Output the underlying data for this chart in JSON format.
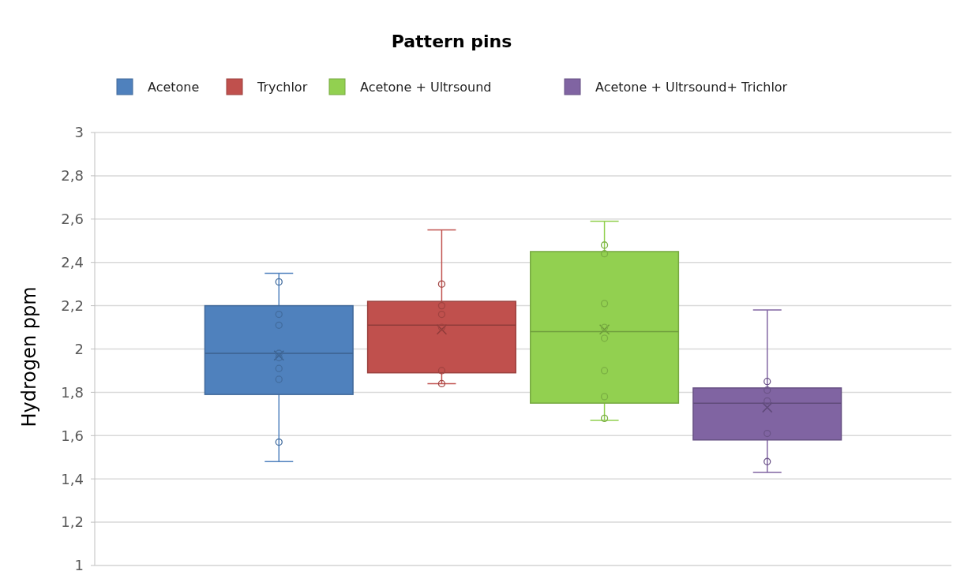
{
  "chart_data": {
    "type": "box",
    "title": "Pattern pins",
    "ylabel": "Hydrogen ppm",
    "categories": [
      null
    ],
    "ylim": [
      1,
      3
    ],
    "yticks": [
      1,
      {
        "value": 1.2,
        "label": "1,2"
      },
      {
        "value": 1.4,
        "label": "1,4"
      },
      {
        "value": 1.6,
        "label": "1,6"
      },
      {
        "value": 1.8,
        "label": "1,8"
      },
      2,
      {
        "value": 2.2,
        "label": "2,2"
      },
      {
        "value": 2.4,
        "label": "2,4"
      },
      {
        "value": 2.6,
        "label": "2,6"
      },
      {
        "value": 2.8,
        "label": "2,8"
      },
      3
    ],
    "grid": "y",
    "legend": "top",
    "series": [
      {
        "name": "Acetone",
        "color": "#4f81bd",
        "boxes": [
          {
            "low": 1.48,
            "q1": 1.79,
            "median": 1.98,
            "q3": 2.2,
            "high": 2.35,
            "mean": 1.97,
            "outliers": [
              2.31,
              2.16,
              2.11,
              1.98,
              1.96,
              1.91,
              1.86,
              1.57
            ]
          }
        ]
      },
      {
        "name": "Trychlor",
        "color": "#c0504d",
        "boxes": [
          {
            "low": 1.84,
            "q1": 1.89,
            "median": 2.11,
            "q3": 2.22,
            "high": 2.55,
            "mean": 2.09,
            "outliers": [
              2.3,
              2.2,
              2.16,
              2.1,
              1.9,
              1.84
            ]
          }
        ]
      },
      {
        "name": "Acetone + Ultrsound",
        "color": "#92d050",
        "boxes": [
          {
            "low": 1.67,
            "q1": 1.75,
            "median": 2.08,
            "q3": 2.45,
            "high": 2.59,
            "mean": 2.09,
            "outliers": [
              2.48,
              2.44,
              2.21,
              2.1,
              2.05,
              1.9,
              1.78,
              1.68
            ]
          }
        ]
      },
      {
        "name": "Acetone + Ultrsound+ Trichlor",
        "color": "#8064a2",
        "boxes": [
          {
            "low": 1.43,
            "q1": 1.58,
            "median": 1.75,
            "q3": 1.82,
            "high": 2.18,
            "mean": 1.73,
            "outliers": [
              1.85,
              1.81,
              1.76,
              1.61,
              1.48
            ]
          }
        ]
      }
    ]
  }
}
